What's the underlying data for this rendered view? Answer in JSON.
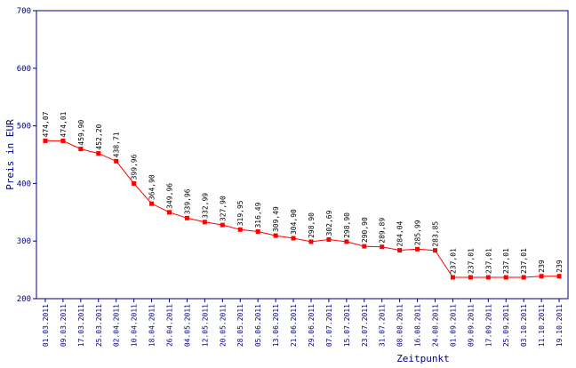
{
  "chart_data": {
    "type": "line",
    "title": "",
    "xlabel": "Zeitpunkt",
    "ylabel": "Preis in EUR",
    "ylim": [
      200,
      700
    ],
    "yticks": [
      200,
      300,
      400,
      500,
      600,
      700
    ],
    "grid": false,
    "colors": {
      "series": "#ff0000",
      "frame": "#000080",
      "label": "#000000"
    },
    "categories": [
      "01.03.2011",
      "09.03.2011",
      "17.03.2011",
      "25.03.2011",
      "02.04.2011",
      "10.04.2011",
      "18.04.2011",
      "26.04.2011",
      "04.05.2011",
      "12.05.2011",
      "20.05.2011",
      "28.05.2011",
      "05.06.2011",
      "13.06.2011",
      "21.06.2011",
      "29.06.2011",
      "07.07.2011",
      "15.07.2011",
      "23.07.2011",
      "31.07.2011",
      "08.08.2011",
      "16.08.2011",
      "24.08.2011",
      "01.09.2011",
      "09.09.2011",
      "17.09.2011",
      "25.09.2011",
      "03.10.2011",
      "11.10.2011",
      "19.10.2011"
    ],
    "values": [
      474.07,
      474.01,
      459.9,
      452.2,
      438.71,
      399.96,
      364.9,
      349.96,
      339.96,
      332.99,
      327.9,
      319.95,
      316.49,
      309.49,
      304.9,
      298.9,
      302.69,
      298.9,
      290.9,
      289.89,
      284.04,
      285.99,
      283.85,
      237.01,
      237.01,
      237.01,
      237.01,
      237.01,
      239,
      239
    ],
    "value_labels": [
      "474,07",
      "474,01",
      "459,90",
      "452,20",
      "438,71",
      "399,96",
      "364,90",
      "349,96",
      "339,96",
      "332,99",
      "327,90",
      "319,95",
      "316,49",
      "309,49",
      "304,90",
      "298,90",
      "302,69",
      "298,90",
      "290,90",
      "289,89",
      "284,04",
      "285,99",
      "283,85",
      "237,01",
      "237,01",
      "237,01",
      "237,01",
      "237,01",
      "239",
      "239"
    ]
  }
}
